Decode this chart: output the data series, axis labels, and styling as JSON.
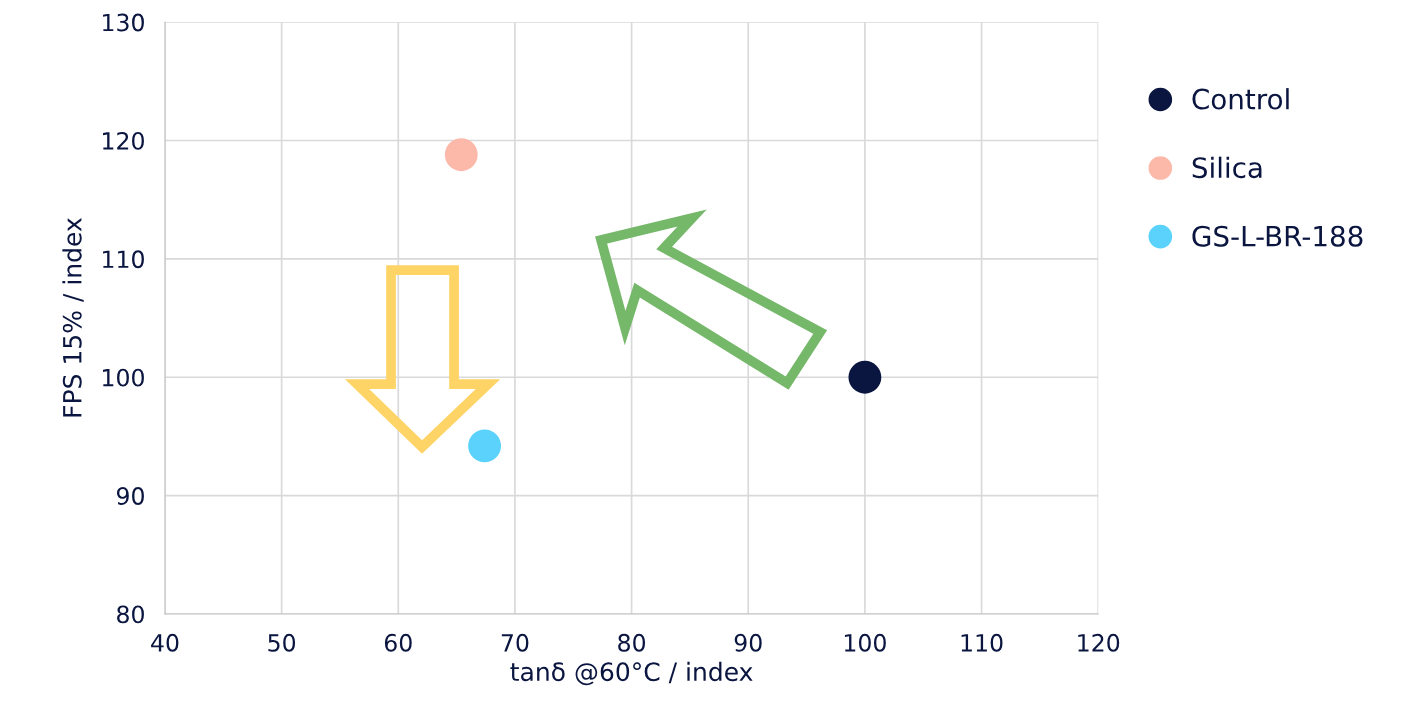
{
  "chart_data": {
    "type": "scatter",
    "xlabel": "tanδ @60°C / index",
    "ylabel": "FPS 15% / index",
    "series": [
      {
        "name": "Control",
        "color": "#0b1640",
        "x": [
          100
        ],
        "values": [
          100
        ]
      },
      {
        "name": "Silica",
        "color": "#fcb9aa",
        "x": [
          65.4
        ],
        "values": [
          118.8
        ]
      },
      {
        "name": "GS-L-BR-188",
        "color": "#5ad2fc",
        "x": [
          67.4
        ],
        "values": [
          94.2
        ]
      }
    ],
    "xlim": [
      40,
      120
    ],
    "xticks": [
      40,
      50,
      60,
      70,
      80,
      90,
      100,
      110,
      120
    ],
    "ylim": [
      80,
      130
    ],
    "yticks": [
      80,
      90,
      100,
      110,
      120,
      130
    ],
    "grid": true,
    "legend": "right",
    "marker": "circle"
  }
}
